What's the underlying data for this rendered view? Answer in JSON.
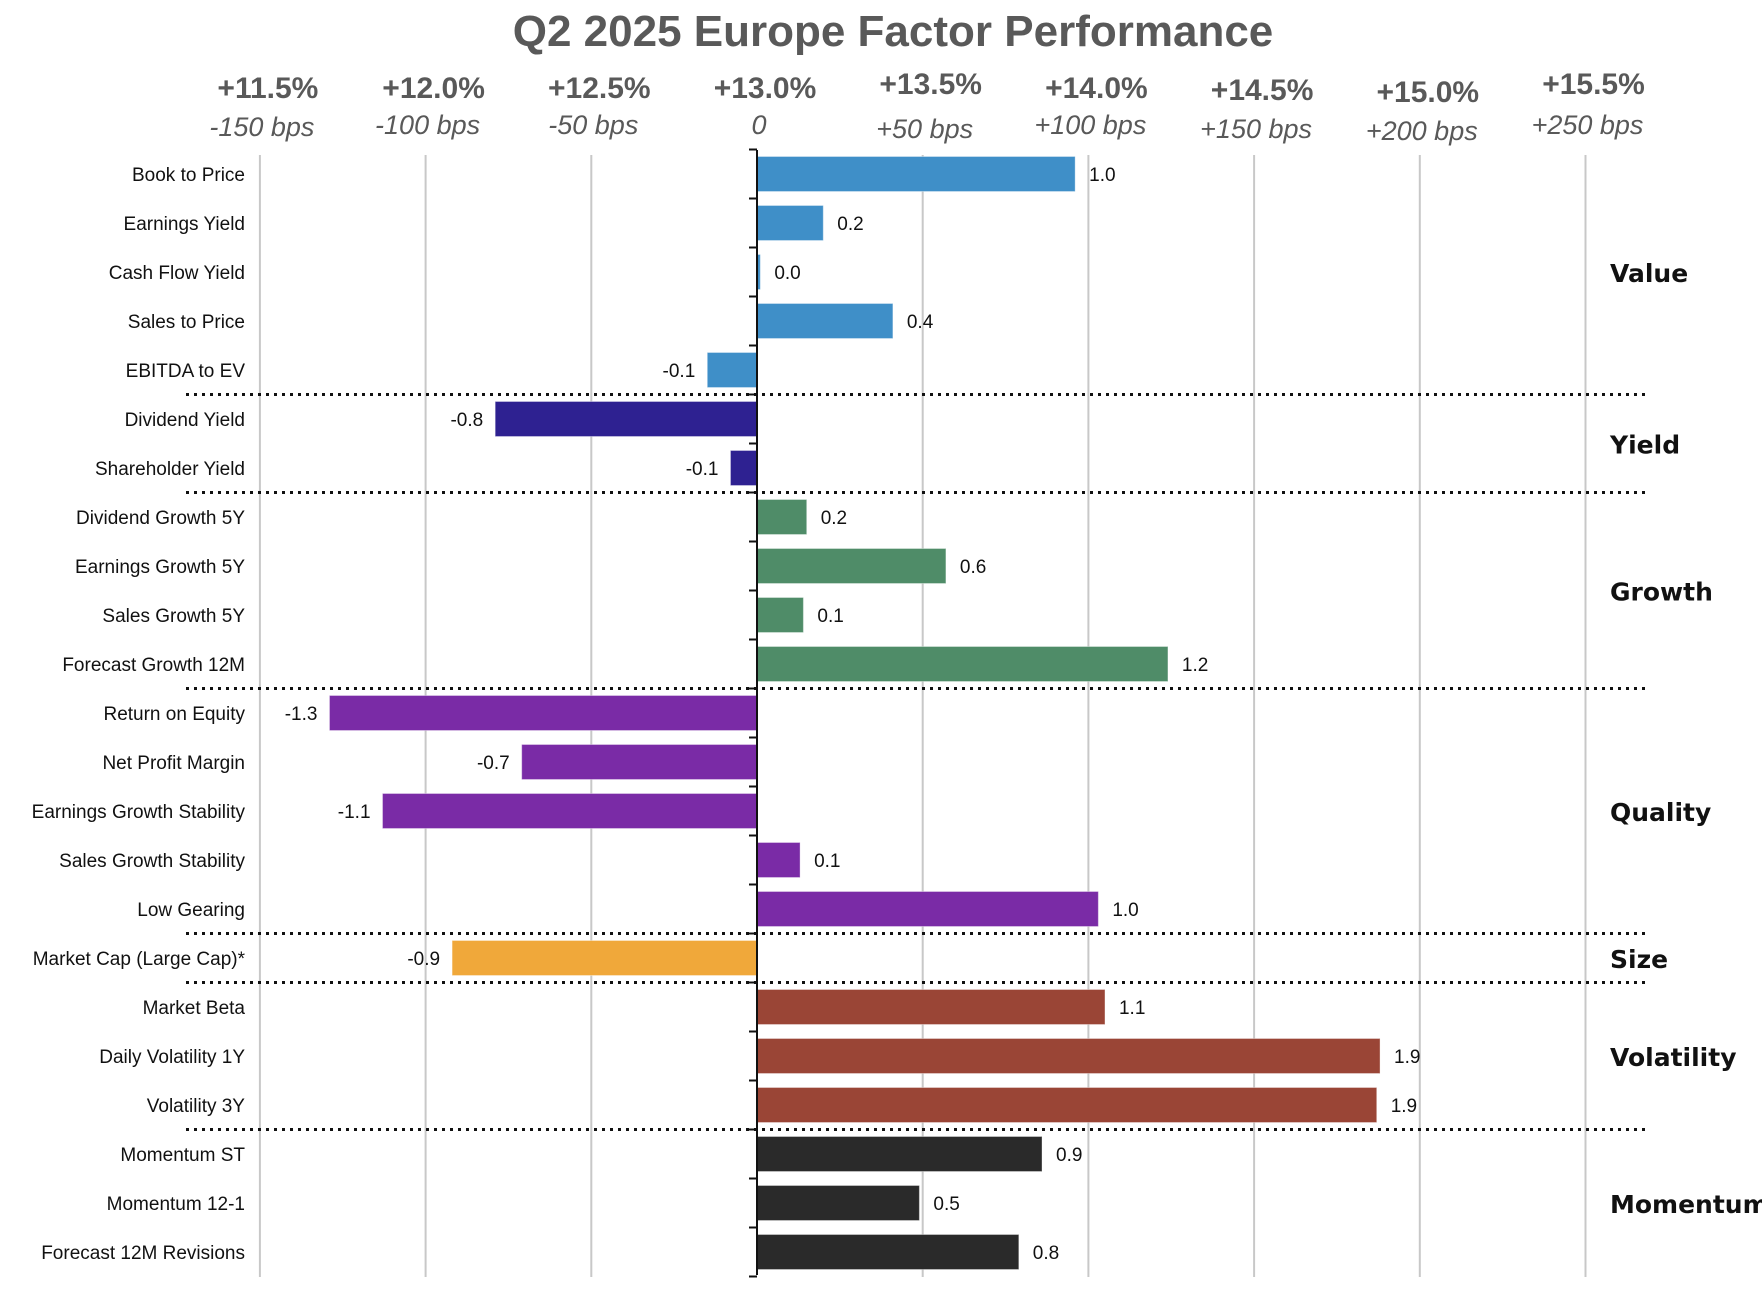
{
  "chart_data": {
    "type": "bar",
    "orientation": "horizontal",
    "title": "Q2 2025 Europe Factor Performance",
    "xlabel": "",
    "ylabel": "",
    "xlim": [
      -1.5,
      2.5
    ],
    "grid": true,
    "legend": "none",
    "baseline_label": "+13.0%",
    "x_ticks": [
      {
        "value": -1.5,
        "pct": "+11.5%",
        "bps": "-150 bps"
      },
      {
        "value": -1.0,
        "pct": "+12.0%",
        "bps": "-100 bps"
      },
      {
        "value": -0.5,
        "pct": "+12.5%",
        "bps": "-50 bps"
      },
      {
        "value": 0.0,
        "pct": "+13.0%",
        "bps": "0"
      },
      {
        "value": 0.5,
        "pct": "+13.5%",
        "bps": "+50 bps"
      },
      {
        "value": 1.0,
        "pct": "+14.0%",
        "bps": "+100 bps"
      },
      {
        "value": 1.5,
        "pct": "+14.5%",
        "bps": "+150 bps"
      },
      {
        "value": 2.0,
        "pct": "+15.0%",
        "bps": "+200 bps"
      },
      {
        "value": 2.5,
        "pct": "+15.5%",
        "bps": "+250 bps"
      }
    ],
    "groups": [
      {
        "name": "Value",
        "color": "#3F8FC8",
        "rows": [
          0,
          4
        ]
      },
      {
        "name": "Yield",
        "color": "#2E2191",
        "rows": [
          5,
          6
        ]
      },
      {
        "name": "Growth",
        "color": "#4F8C68",
        "rows": [
          7,
          10
        ]
      },
      {
        "name": "Quality",
        "color": "#7A2BA6",
        "rows": [
          11,
          15
        ]
      },
      {
        "name": "Size",
        "color": "#F0A83A",
        "rows": [
          16,
          16
        ]
      },
      {
        "name": "Volatility",
        "color": "#9A4536",
        "rows": [
          17,
          19
        ]
      },
      {
        "name": "Momentum",
        "color": "#2A2A2A",
        "rows": [
          20,
          22
        ]
      }
    ],
    "categories": [
      "Book to Price",
      "Earnings Yield",
      "Cash Flow Yield",
      "Sales to Price",
      "EBITDA to EV",
      "Dividend Yield",
      "Shareholder Yield",
      "Dividend Growth 5Y",
      "Earnings Growth 5Y",
      "Sales Growth 5Y",
      "Forecast Growth 12M",
      "Return on Equity",
      "Net Profit Margin",
      "Earnings Growth Stability",
      "Sales Growth Stability",
      "Low Gearing",
      "Market Cap (Large Cap)*",
      "Market Beta",
      "Daily Volatility 1Y",
      "Volatility 3Y",
      "Momentum ST",
      "Momentum 12-1",
      "Forecast 12M Revisions"
    ],
    "values": [
      0.96,
      0.2,
      0.01,
      0.41,
      -0.15,
      -0.79,
      -0.08,
      0.15,
      0.57,
      0.14,
      1.24,
      -1.29,
      -0.71,
      -1.13,
      0.13,
      1.03,
      -0.92,
      1.05,
      1.88,
      1.87,
      0.86,
      0.49,
      0.79
    ],
    "value_labels": [
      "1.0",
      "0.2",
      "0.0",
      "0.4",
      "-0.1",
      "-0.8",
      "-0.1",
      "0.2",
      "0.6",
      "0.1",
      "1.2",
      "-1.3",
      "-0.7",
      "-1.1",
      "0.1",
      "1.0",
      "-0.9",
      "1.1",
      "1.9",
      "1.9",
      "0.9",
      "0.5",
      "0.8"
    ]
  }
}
